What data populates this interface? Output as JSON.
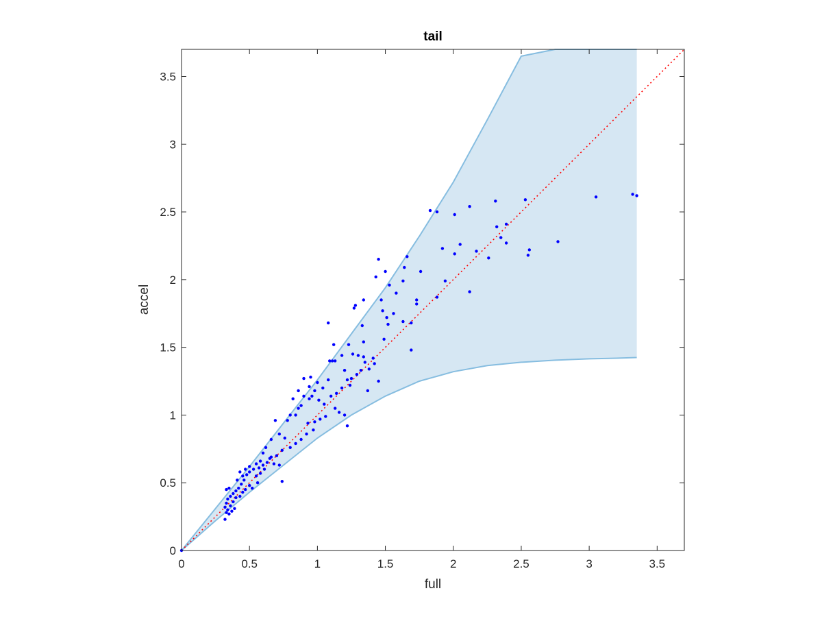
{
  "chart_data": {
    "type": "scatter",
    "title": "tail",
    "xlabel": "full",
    "ylabel": "accel",
    "xlim": [
      0,
      3.7
    ],
    "ylim": [
      0,
      3.7
    ],
    "xticks": [
      "0",
      "0.5",
      "1",
      "1.5",
      "2",
      "2.5",
      "3",
      "3.5"
    ],
    "yticks": [
      "0",
      "0.5",
      "1",
      "1.5",
      "2",
      "2.5",
      "3",
      "3.5"
    ],
    "xtick_values": [
      0,
      0.5,
      1,
      1.5,
      2,
      2.5,
      3,
      3.5
    ],
    "ytick_values": [
      0,
      0.5,
      1,
      1.5,
      2,
      2.5,
      3,
      3.5
    ],
    "grid": false,
    "colors": {
      "points": "#0000ff",
      "band_fill": "#d6e7f3",
      "band_edge": "#86bde0",
      "reference_line": "#ff0000",
      "axes": "#262626"
    },
    "band": {
      "x": [
        0,
        0.25,
        0.5,
        0.75,
        1.0,
        1.25,
        1.5,
        1.75,
        2.0,
        2.25,
        2.5,
        2.75,
        3.0,
        3.2,
        3.35
      ],
      "upper": [
        0,
        0.31,
        0.62,
        0.94,
        1.26,
        1.6,
        1.94,
        2.32,
        2.72,
        3.18,
        3.65,
        3.7,
        3.7,
        3.7,
        3.7
      ],
      "lower": [
        0,
        0.22,
        0.43,
        0.63,
        0.83,
        1.0,
        1.14,
        1.25,
        1.32,
        1.365,
        1.39,
        1.405,
        1.415,
        1.42,
        1.425
      ]
    },
    "reference_line": {
      "x": [
        0,
        3.7
      ],
      "y": [
        0,
        3.7
      ],
      "style": "dotted"
    },
    "series": [
      {
        "points": [
          [
            0,
            0
          ],
          [
            1.83,
            2.51
          ],
          [
            1.88,
            2.5
          ],
          [
            2.01,
            2.48
          ],
          [
            2.12,
            2.54
          ],
          [
            2.31,
            2.58
          ],
          [
            2.53,
            2.59
          ],
          [
            3.05,
            2.61
          ],
          [
            3.32,
            2.63
          ],
          [
            3.35,
            2.62
          ],
          [
            2.32,
            2.39
          ],
          [
            2.35,
            2.31
          ],
          [
            2.39,
            2.41
          ],
          [
            2.39,
            2.27
          ],
          [
            1.92,
            2.23
          ],
          [
            2.05,
            2.26
          ],
          [
            2.01,
            2.19
          ],
          [
            2.17,
            2.21
          ],
          [
            2.26,
            2.16
          ],
          [
            2.55,
            2.18
          ],
          [
            2.56,
            2.22
          ],
          [
            2.77,
            2.28
          ],
          [
            2.12,
            1.91
          ],
          [
            1.94,
            1.99
          ],
          [
            1.88,
            1.87
          ],
          [
            1.73,
            1.85
          ],
          [
            1.76,
            2.06
          ],
          [
            1.64,
            2.09
          ],
          [
            1.66,
            2.17
          ],
          [
            1.63,
            1.99
          ],
          [
            1.58,
            1.9
          ],
          [
            1.56,
            1.75
          ],
          [
            1.63,
            1.69
          ],
          [
            1.69,
            1.68
          ],
          [
            1.69,
            1.48
          ],
          [
            1.73,
            1.82
          ],
          [
            1.45,
            2.15
          ],
          [
            1.5,
            2.06
          ],
          [
            1.43,
            2.02
          ],
          [
            1.53,
            1.96
          ],
          [
            1.34,
            1.85
          ],
          [
            1.28,
            1.81
          ],
          [
            1.27,
            1.79
          ],
          [
            1.47,
            1.85
          ],
          [
            1.48,
            1.77
          ],
          [
            1.51,
            1.72
          ],
          [
            1.52,
            1.67
          ],
          [
            1.33,
            1.66
          ],
          [
            1.34,
            1.54
          ],
          [
            1.49,
            1.56
          ],
          [
            1.45,
            1.25
          ],
          [
            1.37,
            1.18
          ],
          [
            1.22,
            0.92
          ],
          [
            1.08,
            1.68
          ],
          [
            1.12,
            1.52
          ],
          [
            1.09,
            1.4
          ],
          [
            1.11,
            1.4
          ],
          [
            1.13,
            1.4
          ],
          [
            1.18,
            1.44
          ],
          [
            1.23,
            1.52
          ],
          [
            1.26,
            1.45
          ],
          [
            1.3,
            1.44
          ],
          [
            1.34,
            1.43
          ],
          [
            1.41,
            1.42
          ],
          [
            1.42,
            1.38
          ],
          [
            1.35,
            1.39
          ],
          [
            1.38,
            1.34
          ],
          [
            1.32,
            1.33
          ],
          [
            1.29,
            1.3
          ],
          [
            1.25,
            1.27
          ],
          [
            1.22,
            1.26
          ],
          [
            1.2,
            1.33
          ],
          [
            1.24,
            1.22
          ],
          [
            1.18,
            1.2
          ],
          [
            1.14,
            1.16
          ],
          [
            1.1,
            1.14
          ],
          [
            1.08,
            1.26
          ],
          [
            1.04,
            1.2
          ],
          [
            1.0,
            1.24
          ],
          [
            0.98,
            1.18
          ],
          [
            0.96,
            1.14
          ],
          [
            0.94,
            1.12
          ],
          [
            0.9,
            1.14
          ],
          [
            0.88,
            1.07
          ],
          [
            0.86,
            1.05
          ],
          [
            0.84,
            1.0
          ],
          [
            0.8,
            1.0
          ],
          [
            0.78,
            0.96
          ],
          [
            0.9,
            1.27
          ],
          [
            0.94,
            1.21
          ],
          [
            0.86,
            1.18
          ],
          [
            0.82,
            1.12
          ],
          [
            0.95,
            1.28
          ],
          [
            1.01,
            1.11
          ],
          [
            1.05,
            1.08
          ],
          [
            1.13,
            1.05
          ],
          [
            1.16,
            1.02
          ],
          [
            1.2,
            1.0
          ],
          [
            1.06,
            0.99
          ],
          [
            1.02,
            0.97
          ],
          [
            0.98,
            0.95
          ],
          [
            0.93,
            0.94
          ],
          [
            0.97,
            0.89
          ],
          [
            0.92,
            0.86
          ],
          [
            0.88,
            0.82
          ],
          [
            0.84,
            0.79
          ],
          [
            0.8,
            0.76
          ],
          [
            0.74,
            0.74
          ],
          [
            0.7,
            0.7
          ],
          [
            0.76,
            0.83
          ],
          [
            0.72,
            0.86
          ],
          [
            0.69,
            0.96
          ],
          [
            0.66,
            0.82
          ],
          [
            0.62,
            0.76
          ],
          [
            0.6,
            0.72
          ],
          [
            0.65,
            0.68
          ],
          [
            0.68,
            0.64
          ],
          [
            0.72,
            0.63
          ],
          [
            0.74,
            0.51
          ],
          [
            0.58,
            0.66
          ],
          [
            0.55,
            0.64
          ],
          [
            0.53,
            0.6
          ],
          [
            0.5,
            0.58
          ],
          [
            0.48,
            0.56
          ],
          [
            0.46,
            0.52
          ],
          [
            0.5,
            0.48
          ],
          [
            0.52,
            0.46
          ],
          [
            0.56,
            0.5
          ],
          [
            0.44,
            0.49
          ],
          [
            0.42,
            0.46
          ],
          [
            0.4,
            0.44
          ],
          [
            0.38,
            0.42
          ],
          [
            0.36,
            0.4
          ],
          [
            0.34,
            0.38
          ],
          [
            0.33,
            0.35
          ],
          [
            0.32,
            0.32
          ],
          [
            0.34,
            0.3
          ],
          [
            0.36,
            0.33
          ],
          [
            0.38,
            0.36
          ],
          [
            0.4,
            0.39
          ],
          [
            0.43,
            0.4
          ],
          [
            0.45,
            0.43
          ],
          [
            0.47,
            0.45
          ],
          [
            0.32,
            0.23
          ],
          [
            0.35,
            0.27
          ],
          [
            0.33,
            0.28
          ],
          [
            0.37,
            0.29
          ],
          [
            0.39,
            0.31
          ],
          [
            0.33,
            0.45
          ],
          [
            0.35,
            0.46
          ],
          [
            0.47,
            0.6
          ],
          [
            0.5,
            0.62
          ],
          [
            0.45,
            0.55
          ],
          [
            0.41,
            0.52
          ],
          [
            0.43,
            0.58
          ],
          [
            0.55,
            0.55
          ],
          [
            0.58,
            0.57
          ],
          [
            0.61,
            0.6
          ],
          [
            0.63,
            0.65
          ],
          [
            0.66,
            0.69
          ],
          [
            0.6,
            0.63
          ],
          [
            0.57,
            0.61
          ]
        ]
      }
    ]
  }
}
